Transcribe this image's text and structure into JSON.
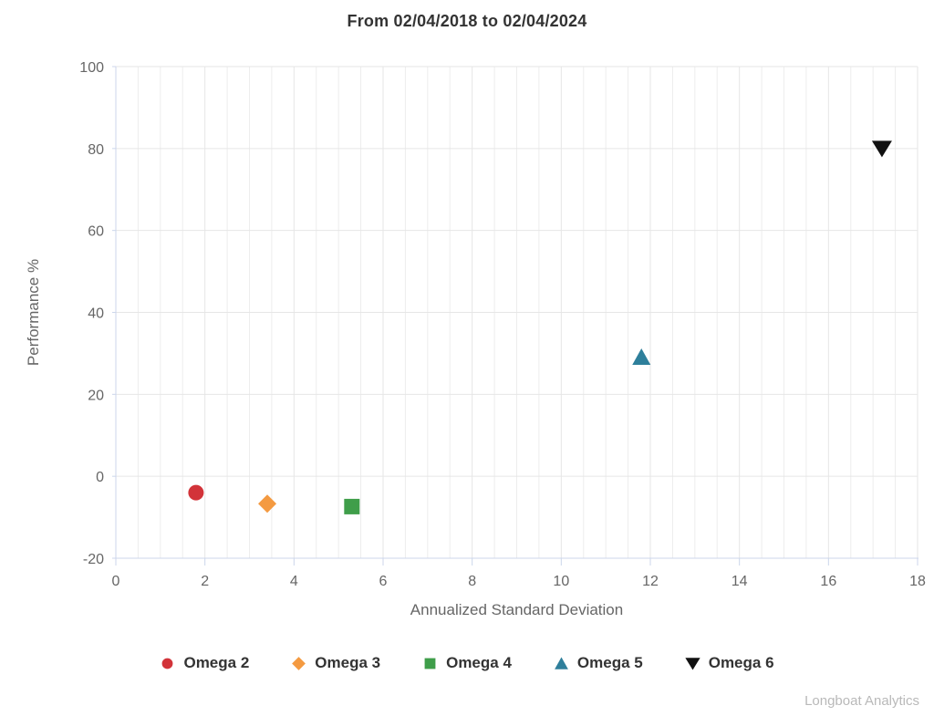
{
  "watermark": "Longboat Analytics",
  "chart_data": {
    "type": "scatter",
    "title": "From 02/04/2018 to 02/04/2024",
    "xlabel": "Annualized Standard Deviation",
    "ylabel": "Performance %",
    "xlim": [
      0,
      18
    ],
    "ylim": [
      -20,
      100
    ],
    "x_ticks": [
      0,
      2,
      4,
      6,
      8,
      10,
      12,
      14,
      16,
      18
    ],
    "y_ticks": [
      -20,
      0,
      20,
      40,
      60,
      80,
      100
    ],
    "x_minor_step": 0.5,
    "grid": true,
    "legend_position": "bottom",
    "series": [
      {
        "name": "Omega 2",
        "marker": "circle",
        "color": "#d23339",
        "points": [
          {
            "x": 1.8,
            "y": -4.0
          }
        ]
      },
      {
        "name": "Omega 3",
        "marker": "diamond",
        "color": "#f49a41",
        "points": [
          {
            "x": 3.4,
            "y": -6.7
          }
        ]
      },
      {
        "name": "Omega 4",
        "marker": "square",
        "color": "#3f9e4a",
        "points": [
          {
            "x": 5.3,
            "y": -7.4
          }
        ]
      },
      {
        "name": "Omega 5",
        "marker": "triangle-up",
        "color": "#2e7f9b",
        "points": [
          {
            "x": 11.8,
            "y": 29.1
          }
        ]
      },
      {
        "name": "Omega 6",
        "marker": "triangle-down",
        "color": "#111111",
        "points": [
          {
            "x": 17.2,
            "y": 80.0
          }
        ]
      }
    ],
    "colors": {
      "axis_line": "#ccd6eb",
      "grid_major": "#e6e6e6",
      "grid_minor": "#ededed",
      "tick_label": "#666666",
      "axis_title": "#666666",
      "title_text": "#333333",
      "legend_text": "#333333",
      "watermark": "#b9b9b9",
      "background": "#ffffff"
    }
  }
}
